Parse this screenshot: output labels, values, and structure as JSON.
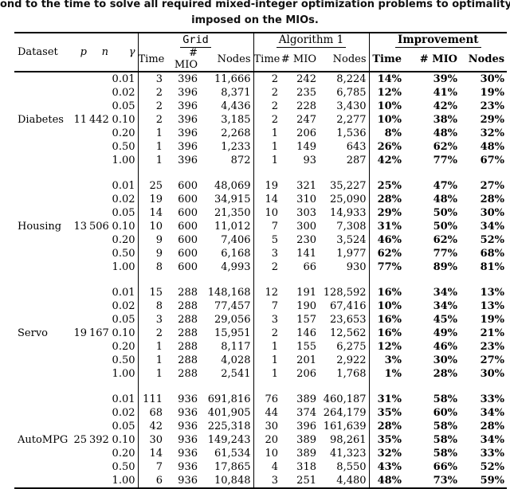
{
  "caption": {
    "line1": "ond to the time to solve all required mixed-integer optimization problems to optimality. No time lim",
    "line2": "imposed on the MIOs."
  },
  "table": {
    "col_headers": {
      "dataset": "Dataset",
      "p": "p",
      "n": "n",
      "gamma": "γ"
    },
    "group_headers": [
      "Grid",
      "Algorithm 1",
      "Improvement"
    ],
    "sub_headers": [
      "Time",
      "# MIO",
      "Nodes"
    ],
    "groups": [
      {
        "dataset": "Diabetes",
        "p": 11,
        "n": 442,
        "rows": [
          {
            "gamma": "0.01",
            "grid": [
              "3",
              "396",
              "11,666"
            ],
            "alg": [
              "2",
              "242",
              "8,224"
            ],
            "imp": [
              "14%",
              "39%",
              "30%"
            ]
          },
          {
            "gamma": "0.02",
            "grid": [
              "2",
              "396",
              "8,371"
            ],
            "alg": [
              "2",
              "235",
              "6,785"
            ],
            "imp": [
              "12%",
              "41%",
              "19%"
            ]
          },
          {
            "gamma": "0.05",
            "grid": [
              "2",
              "396",
              "4,436"
            ],
            "alg": [
              "2",
              "228",
              "3,430"
            ],
            "imp": [
              "10%",
              "42%",
              "23%"
            ]
          },
          {
            "gamma": "0.10",
            "grid": [
              "2",
              "396",
              "3,185"
            ],
            "alg": [
              "2",
              "247",
              "2,277"
            ],
            "imp": [
              "10%",
              "38%",
              "29%"
            ]
          },
          {
            "gamma": "0.20",
            "grid": [
              "1",
              "396",
              "2,268"
            ],
            "alg": [
              "1",
              "206",
              "1,536"
            ],
            "imp": [
              "8%",
              "48%",
              "32%"
            ]
          },
          {
            "gamma": "0.50",
            "grid": [
              "1",
              "396",
              "1,233"
            ],
            "alg": [
              "1",
              "149",
              "643"
            ],
            "imp": [
              "26%",
              "62%",
              "48%"
            ]
          },
          {
            "gamma": "1.00",
            "grid": [
              "1",
              "396",
              "872"
            ],
            "alg": [
              "1",
              "93",
              "287"
            ],
            "imp": [
              "42%",
              "77%",
              "67%"
            ]
          }
        ]
      },
      {
        "dataset": "Housing",
        "p": 13,
        "n": 506,
        "rows": [
          {
            "gamma": "0.01",
            "grid": [
              "25",
              "600",
              "48,069"
            ],
            "alg": [
              "19",
              "321",
              "35,227"
            ],
            "imp": [
              "25%",
              "47%",
              "27%"
            ]
          },
          {
            "gamma": "0.02",
            "grid": [
              "19",
              "600",
              "34,915"
            ],
            "alg": [
              "14",
              "310",
              "25,090"
            ],
            "imp": [
              "28%",
              "48%",
              "28%"
            ]
          },
          {
            "gamma": "0.05",
            "grid": [
              "14",
              "600",
              "21,350"
            ],
            "alg": [
              "10",
              "303",
              "14,933"
            ],
            "imp": [
              "29%",
              "50%",
              "30%"
            ]
          },
          {
            "gamma": "0.10",
            "grid": [
              "10",
              "600",
              "11,012"
            ],
            "alg": [
              "7",
              "300",
              "7,308"
            ],
            "imp": [
              "31%",
              "50%",
              "34%"
            ]
          },
          {
            "gamma": "0.20",
            "grid": [
              "9",
              "600",
              "7,406"
            ],
            "alg": [
              "5",
              "230",
              "3,524"
            ],
            "imp": [
              "46%",
              "62%",
              "52%"
            ]
          },
          {
            "gamma": "0.50",
            "grid": [
              "9",
              "600",
              "6,168"
            ],
            "alg": [
              "3",
              "141",
              "1,977"
            ],
            "imp": [
              "62%",
              "77%",
              "68%"
            ]
          },
          {
            "gamma": "1.00",
            "grid": [
              "8",
              "600",
              "4,993"
            ],
            "alg": [
              "2",
              "66",
              "930"
            ],
            "imp": [
              "77%",
              "89%",
              "81%"
            ]
          }
        ]
      },
      {
        "dataset": "Servo",
        "p": 19,
        "n": 167,
        "rows": [
          {
            "gamma": "0.01",
            "grid": [
              "15",
              "288",
              "148,168"
            ],
            "alg": [
              "12",
              "191",
              "128,592"
            ],
            "imp": [
              "16%",
              "34%",
              "13%"
            ]
          },
          {
            "gamma": "0.02",
            "grid": [
              "8",
              "288",
              "77,457"
            ],
            "alg": [
              "7",
              "190",
              "67,416"
            ],
            "imp": [
              "10%",
              "34%",
              "13%"
            ]
          },
          {
            "gamma": "0.05",
            "grid": [
              "3",
              "288",
              "29,056"
            ],
            "alg": [
              "3",
              "157",
              "23,653"
            ],
            "imp": [
              "16%",
              "45%",
              "19%"
            ]
          },
          {
            "gamma": "0.10",
            "grid": [
              "2",
              "288",
              "15,951"
            ],
            "alg": [
              "2",
              "146",
              "12,562"
            ],
            "imp": [
              "16%",
              "49%",
              "21%"
            ]
          },
          {
            "gamma": "0.20",
            "grid": [
              "1",
              "288",
              "8,117"
            ],
            "alg": [
              "1",
              "155",
              "6,275"
            ],
            "imp": [
              "12%",
              "46%",
              "23%"
            ]
          },
          {
            "gamma": "0.50",
            "grid": [
              "1",
              "288",
              "4,028"
            ],
            "alg": [
              "1",
              "201",
              "2,922"
            ],
            "imp": [
              "3%",
              "30%",
              "27%"
            ]
          },
          {
            "gamma": "1.00",
            "grid": [
              "1",
              "288",
              "2,541"
            ],
            "alg": [
              "1",
              "206",
              "1,768"
            ],
            "imp": [
              "1%",
              "28%",
              "30%"
            ]
          }
        ]
      },
      {
        "dataset": "AutoMPG",
        "p": 25,
        "n": 392,
        "rows": [
          {
            "gamma": "0.01",
            "grid": [
              "111",
              "936",
              "691,816"
            ],
            "alg": [
              "76",
              "389",
              "460,187"
            ],
            "imp": [
              "31%",
              "58%",
              "33%"
            ]
          },
          {
            "gamma": "0.02",
            "grid": [
              "68",
              "936",
              "401,905"
            ],
            "alg": [
              "44",
              "374",
              "264,179"
            ],
            "imp": [
              "35%",
              "60%",
              "34%"
            ]
          },
          {
            "gamma": "0.05",
            "grid": [
              "42",
              "936",
              "225,318"
            ],
            "alg": [
              "30",
              "396",
              "161,639"
            ],
            "imp": [
              "28%",
              "58%",
              "28%"
            ]
          },
          {
            "gamma": "0.10",
            "grid": [
              "30",
              "936",
              "149,243"
            ],
            "alg": [
              "20",
              "389",
              "98,261"
            ],
            "imp": [
              "35%",
              "58%",
              "34%"
            ]
          },
          {
            "gamma": "0.20",
            "grid": [
              "14",
              "936",
              "61,534"
            ],
            "alg": [
              "10",
              "389",
              "41,323"
            ],
            "imp": [
              "32%",
              "58%",
              "33%"
            ]
          },
          {
            "gamma": "0.50",
            "grid": [
              "7",
              "936",
              "17,865"
            ],
            "alg": [
              "4",
              "318",
              "8,550"
            ],
            "imp": [
              "43%",
              "66%",
              "52%"
            ]
          },
          {
            "gamma": "1.00",
            "grid": [
              "6",
              "936",
              "10,848"
            ],
            "alg": [
              "3",
              "251",
              "4,480"
            ],
            "imp": [
              "48%",
              "73%",
              "59%"
            ]
          }
        ]
      }
    ]
  }
}
